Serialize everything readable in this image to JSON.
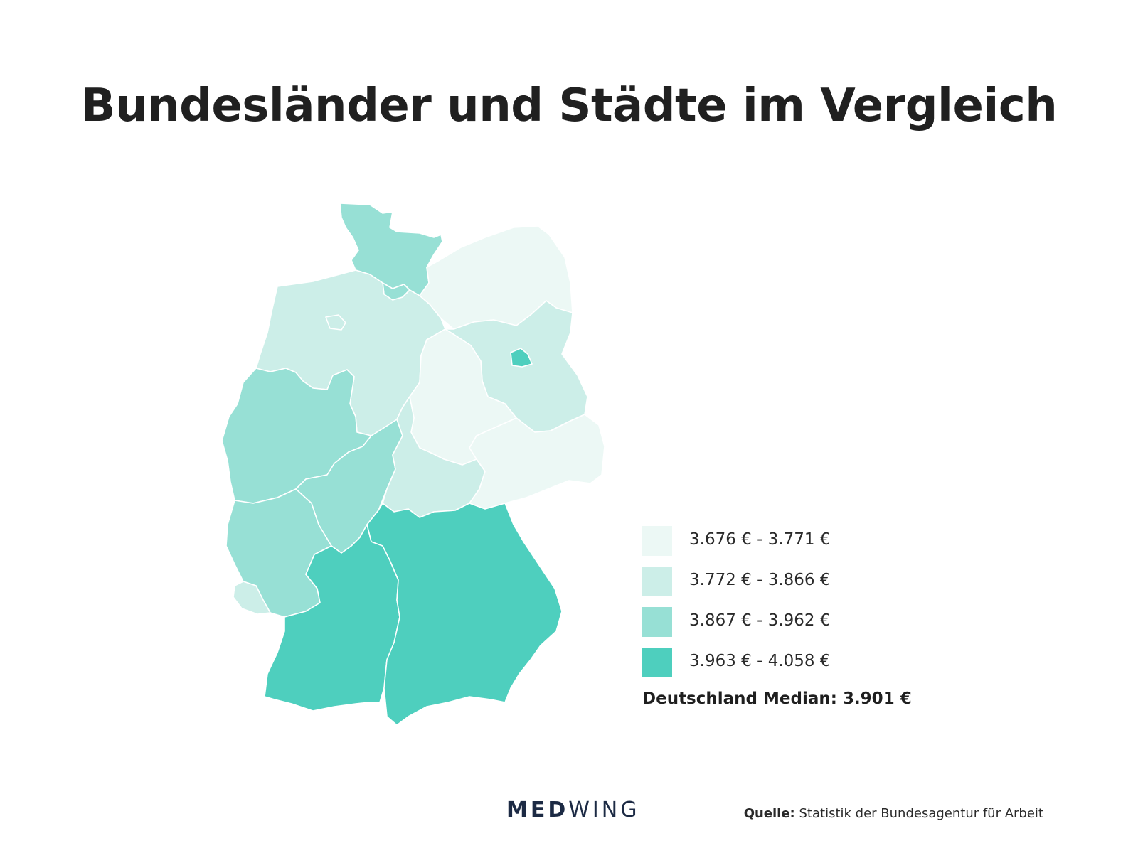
{
  "title": "Bundesländer und Städte im Vergleich",
  "legend": {
    "items": [
      {
        "label": "3.676 € - 3.771 €",
        "color": "#ecf8f5"
      },
      {
        "label": "3.772 € - 3.866 €",
        "color": "#cceee8"
      },
      {
        "label": "3.867 € - 3.962 €",
        "color": "#97e0d5"
      },
      {
        "label": "3.963 € - 4.058 €",
        "color": "#4ecfbe"
      }
    ]
  },
  "median": "Deutschland Median: 3.901 €",
  "brand": {
    "part1": "MED",
    "part2": "WING"
  },
  "source": {
    "label": "Quelle:",
    "text": "Statistik der Bundesagentur für Arbeit"
  },
  "regions": [
    {
      "state": "Schleswig-Holstein",
      "range_index": 2
    },
    {
      "state": "Hamburg",
      "range_index": 2
    },
    {
      "state": "Mecklenburg-Vorpommern",
      "range_index": 0
    },
    {
      "state": "Niedersachsen",
      "range_index": 1
    },
    {
      "state": "Bremen",
      "range_index": 1
    },
    {
      "state": "Brandenburg",
      "range_index": 1
    },
    {
      "state": "Berlin",
      "range_index": 3
    },
    {
      "state": "Sachsen-Anhalt",
      "range_index": 0
    },
    {
      "state": "Nordrhein-Westfalen",
      "range_index": 2
    },
    {
      "state": "Hessen",
      "range_index": 2
    },
    {
      "state": "Thüringen",
      "range_index": 1
    },
    {
      "state": "Sachsen",
      "range_index": 0
    },
    {
      "state": "Rheinland-Pfalz",
      "range_index": 2
    },
    {
      "state": "Saarland",
      "range_index": 1
    },
    {
      "state": "Baden-Württemberg",
      "range_index": 3
    },
    {
      "state": "Bayern",
      "range_index": 3
    }
  ]
}
